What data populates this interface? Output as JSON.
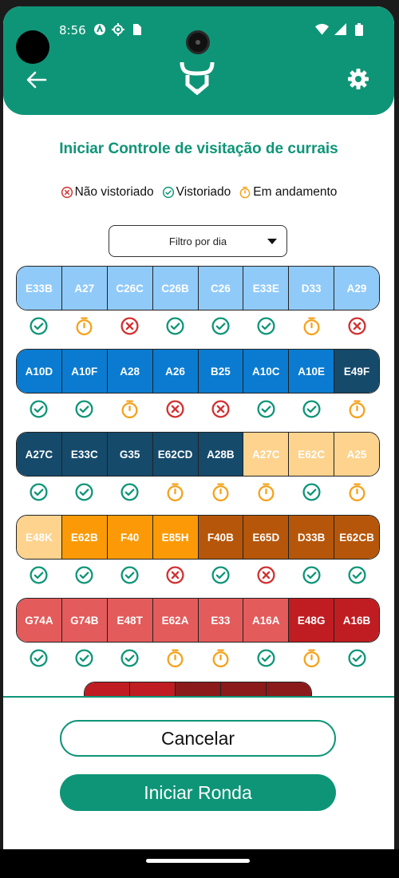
{
  "status_bar": {
    "time": "8:56"
  },
  "header": {
    "back_icon": "arrow-left-icon",
    "logo_icon": "bull-logo-icon",
    "settings_icon": "gear-icon"
  },
  "title": "Iniciar Controle de visitação de currais",
  "legend": [
    {
      "label": "Não vistoriado",
      "status": "x",
      "color": "#d32f2f"
    },
    {
      "label": "Vistoriado",
      "status": "check",
      "color": "#0e9577"
    },
    {
      "label": "Em andamento",
      "status": "timer",
      "color": "#f5a21b"
    }
  ],
  "filter": {
    "label": "Filtro por dia"
  },
  "status_colors": {
    "check": "#0e9577",
    "x": "#d32f2f",
    "timer": "#f5a21b"
  },
  "rows": [
    {
      "pens": [
        {
          "label": "E33B",
          "color": "#90caf9",
          "status": "check"
        },
        {
          "label": "A27",
          "color": "#90caf9",
          "status": "timer"
        },
        {
          "label": "C26C",
          "color": "#90caf9",
          "status": "x"
        },
        {
          "label": "C26B",
          "color": "#90caf9",
          "status": "check"
        },
        {
          "label": "C26",
          "color": "#90caf9",
          "status": "check"
        },
        {
          "label": "E33E",
          "color": "#90caf9",
          "status": "check"
        },
        {
          "label": "D33",
          "color": "#90caf9",
          "status": "timer"
        },
        {
          "label": "A29",
          "color": "#90caf9",
          "status": "x"
        }
      ]
    },
    {
      "pens": [
        {
          "label": "A10D",
          "color": "#0a7bd0",
          "status": "check"
        },
        {
          "label": "A10F",
          "color": "#0a7bd0",
          "status": "check"
        },
        {
          "label": "A28",
          "color": "#0a7bd0",
          "status": "timer"
        },
        {
          "label": "A26",
          "color": "#0a7bd0",
          "status": "x"
        },
        {
          "label": "B25",
          "color": "#0a7bd0",
          "status": "x"
        },
        {
          "label": "A10C",
          "color": "#0a7bd0",
          "status": "check"
        },
        {
          "label": "A10E",
          "color": "#0a7bd0",
          "status": "check"
        },
        {
          "label": "E49F",
          "color": "#154a6b",
          "status": "timer"
        }
      ]
    },
    {
      "pens": [
        {
          "label": "A27C",
          "color": "#154a6b",
          "status": "check"
        },
        {
          "label": "E33C",
          "color": "#154a6b",
          "status": "check"
        },
        {
          "label": "G35",
          "color": "#154a6b",
          "status": "check"
        },
        {
          "label": "E62CD",
          "color": "#154a6b",
          "status": "timer"
        },
        {
          "label": "A28B",
          "color": "#154a6b",
          "status": "timer"
        },
        {
          "label": "A27C",
          "color": "#fdd38e",
          "status": "timer"
        },
        {
          "label": "E62C",
          "color": "#fdd38e",
          "status": "check"
        },
        {
          "label": "A25",
          "color": "#fdd38e",
          "status": "timer"
        }
      ]
    },
    {
      "pens": [
        {
          "label": "E48K",
          "color": "#fdd38e",
          "status": "check"
        },
        {
          "label": "E62B",
          "color": "#fb9a06",
          "status": "check"
        },
        {
          "label": "F40",
          "color": "#fb9a06",
          "status": "check"
        },
        {
          "label": "E85H",
          "color": "#fb9a06",
          "status": "x"
        },
        {
          "label": "F40B",
          "color": "#b5560a",
          "status": "check"
        },
        {
          "label": "E65D",
          "color": "#b5560a",
          "status": "x"
        },
        {
          "label": "D33B",
          "color": "#b5560a",
          "status": "check"
        },
        {
          "label": "E62CB",
          "color": "#b5560a",
          "status": "check"
        }
      ]
    },
    {
      "pens": [
        {
          "label": "G74A",
          "color": "#e35b5b",
          "status": "check"
        },
        {
          "label": "G74B",
          "color": "#e35b5b",
          "status": "check"
        },
        {
          "label": "E48T",
          "color": "#e35b5b",
          "status": "check"
        },
        {
          "label": "E62A",
          "color": "#e35b5b",
          "status": "timer"
        },
        {
          "label": "E33",
          "color": "#e35b5b",
          "status": "timer"
        },
        {
          "label": "A16A",
          "color": "#e35b5b",
          "status": "check"
        },
        {
          "label": "E48G",
          "color": "#bf1d22",
          "status": "timer"
        },
        {
          "label": "A16B",
          "color": "#bf1d22",
          "status": "check"
        }
      ]
    }
  ],
  "partial_row_colors": [
    "#bf1d22",
    "#bf1d22",
    "#8b1a1a",
    "#8b1a1a",
    "#8b1a1a"
  ],
  "buttons": {
    "cancel": "Cancelar",
    "start": "Iniciar Ronda"
  }
}
